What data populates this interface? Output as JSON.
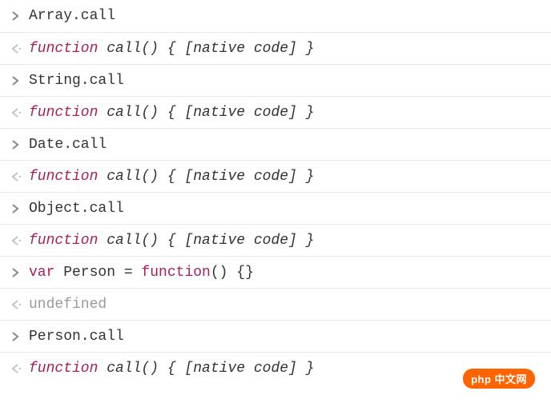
{
  "colors": {
    "keyword": "#a71d5d",
    "normal": "#333333",
    "undefined": "#9a9a9a",
    "input_arrow": "#878787",
    "output_arrow": "#c4c4c4",
    "border": "#e8e8e8",
    "background": "#ffffff",
    "watermark_bg": "#ff6400",
    "watermark_text": "#ffffff"
  },
  "rows": [
    {
      "type": "input",
      "parts": [
        {
          "text": "Array.call",
          "cls": "text-normal"
        }
      ]
    },
    {
      "type": "output",
      "parts": [
        {
          "text": "function",
          "cls": "kw-function"
        },
        {
          "text": " call() { [native code] }",
          "cls": "text-italic"
        }
      ]
    },
    {
      "type": "input",
      "parts": [
        {
          "text": "String.call",
          "cls": "text-normal"
        }
      ]
    },
    {
      "type": "output",
      "parts": [
        {
          "text": "function",
          "cls": "kw-function"
        },
        {
          "text": " call() { [native code] }",
          "cls": "text-italic"
        }
      ]
    },
    {
      "type": "input",
      "parts": [
        {
          "text": "Date.call",
          "cls": "text-normal"
        }
      ]
    },
    {
      "type": "output",
      "parts": [
        {
          "text": "function",
          "cls": "kw-function"
        },
        {
          "text": " call() { [native code] }",
          "cls": "text-italic"
        }
      ]
    },
    {
      "type": "input",
      "parts": [
        {
          "text": "Object.call",
          "cls": "text-normal"
        }
      ]
    },
    {
      "type": "output",
      "parts": [
        {
          "text": "function",
          "cls": "kw-function"
        },
        {
          "text": " call() { [native code] }",
          "cls": "text-italic"
        }
      ]
    },
    {
      "type": "input",
      "parts": [
        {
          "text": "var",
          "cls": "kw-var"
        },
        {
          "text": " Person = ",
          "cls": "text-normal"
        },
        {
          "text": "function",
          "cls": "kw-var"
        },
        {
          "text": "() {}",
          "cls": "text-normal"
        }
      ]
    },
    {
      "type": "output",
      "parts": [
        {
          "text": "undefined",
          "cls": "text-undefined"
        }
      ]
    },
    {
      "type": "input",
      "parts": [
        {
          "text": "Person.call",
          "cls": "text-normal"
        }
      ]
    },
    {
      "type": "output",
      "parts": [
        {
          "text": "function",
          "cls": "kw-function"
        },
        {
          "text": " call() { [native code] }",
          "cls": "text-italic"
        }
      ]
    }
  ],
  "watermark": "php 中文网"
}
